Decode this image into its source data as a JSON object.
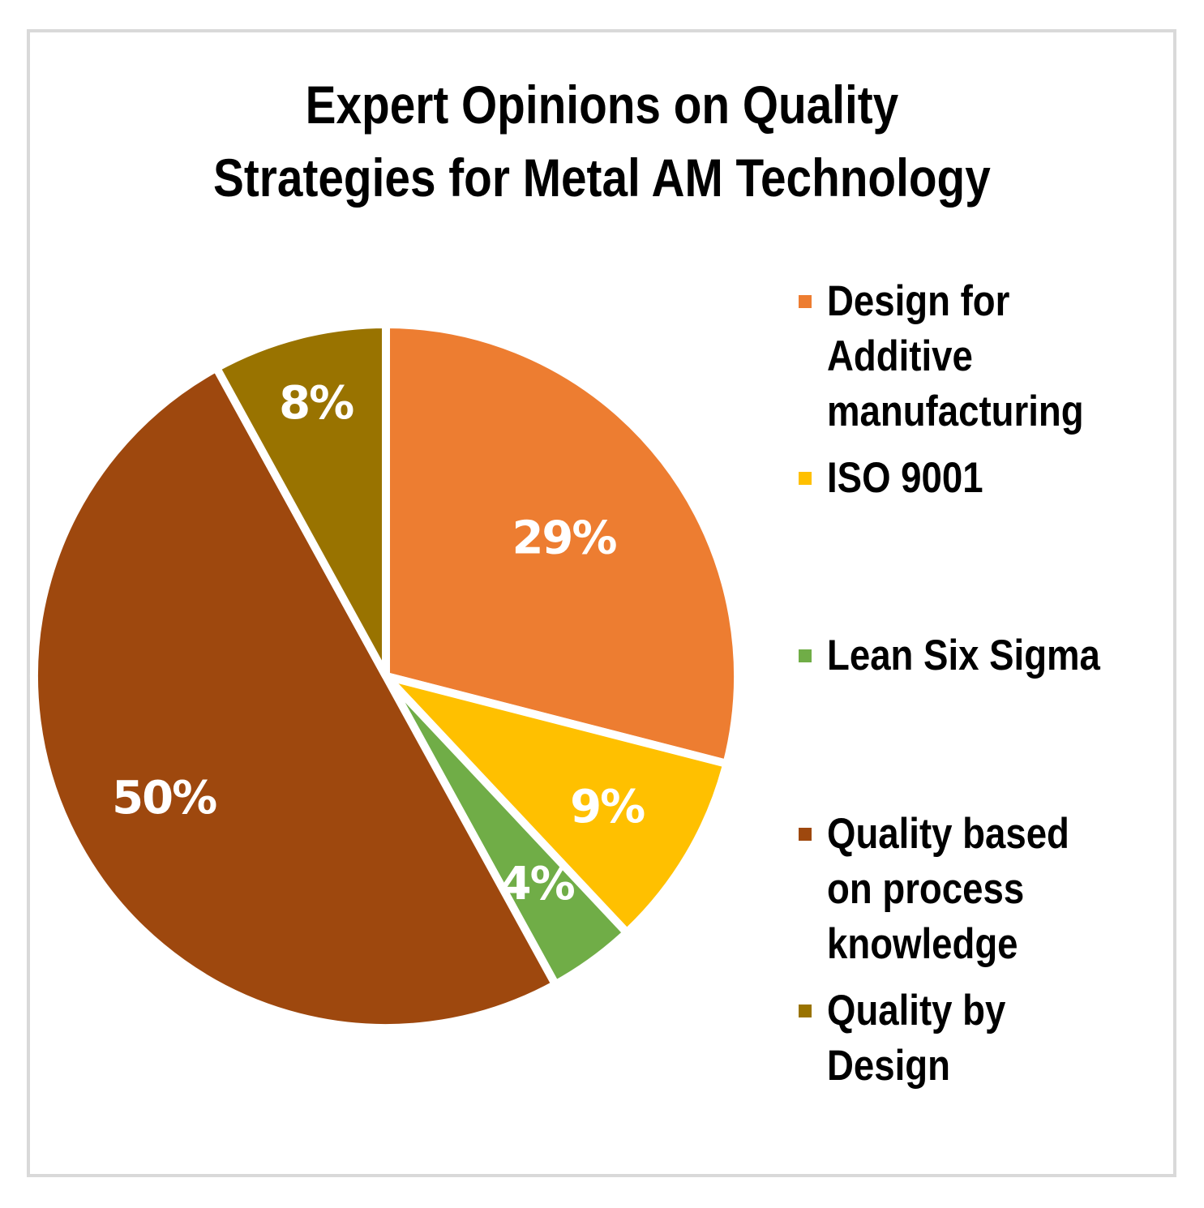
{
  "chart_data": {
    "type": "pie",
    "title_lines": [
      "Expert Opinions on Quality",
      "Strategies for Metal AM Technology"
    ],
    "slices": [
      {
        "name": "Design for Additive manufacturing",
        "name_lines": [
          "Design for",
          "Additive",
          "manufacturing"
        ],
        "value": 29,
        "label": "29%",
        "color": "#ED7D31"
      },
      {
        "name": "ISO 9001",
        "name_lines": [
          "ISO 9001"
        ],
        "value": 9,
        "label": "9%",
        "color": "#FFC000"
      },
      {
        "name": "Lean Six Sigma",
        "name_lines": [
          "Lean Six Sigma"
        ],
        "value": 4,
        "label": "4%",
        "color": "#70AD47"
      },
      {
        "name": "Quality based on process knowledge",
        "name_lines": [
          "Quality based",
          "on process",
          "knowledge"
        ],
        "value": 50,
        "label": "50%",
        "color": "#9E480E"
      },
      {
        "name": "Quality by Design",
        "name_lines": [
          "Quality by",
          "Design"
        ],
        "value": 8,
        "label": "8%",
        "color": "#997300"
      }
    ],
    "start_angle": "12 o'clock",
    "direction": "clockwise",
    "legend_position": "right"
  }
}
